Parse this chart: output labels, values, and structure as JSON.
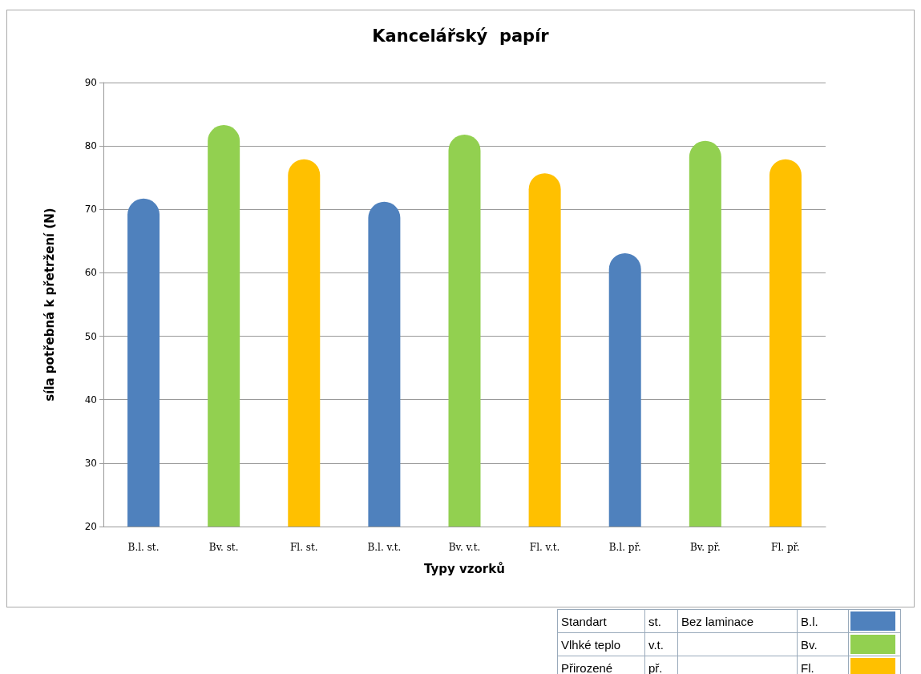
{
  "chart_data": {
    "type": "bar",
    "title": "Kancelářský  papír",
    "xlabel": "Typy vzorků",
    "ylabel": "síla potřebná k přetržení (N)",
    "categories": [
      "B.l. st.",
      "Bv. st.",
      "Fl. st.",
      "B.l. v.t.",
      "Bv. v.t.",
      "Fl. v.t.",
      "B.l. př.",
      "Bv. př.",
      "Fl. př."
    ],
    "values": [
      71.7,
      83.3,
      77.9,
      71.2,
      81.8,
      75.7,
      63.1,
      80.8,
      77.9
    ],
    "colors": [
      "#4f81bd",
      "#92d050",
      "#ffc000",
      "#4f81bd",
      "#92d050",
      "#ffc000",
      "#4f81bd",
      "#92d050",
      "#ffc000"
    ],
    "ylim": [
      20,
      90
    ],
    "yticks": [
      20,
      30,
      40,
      50,
      60,
      70,
      80,
      90
    ],
    "grid": "y",
    "annotations": [
      "Standart",
      "st.",
      "Bez laminace",
      "B.l.",
      "Vlhké teplo",
      "v.t.",
      "Bv.",
      "Přirozené",
      "př.",
      "Fl."
    ]
  }
}
